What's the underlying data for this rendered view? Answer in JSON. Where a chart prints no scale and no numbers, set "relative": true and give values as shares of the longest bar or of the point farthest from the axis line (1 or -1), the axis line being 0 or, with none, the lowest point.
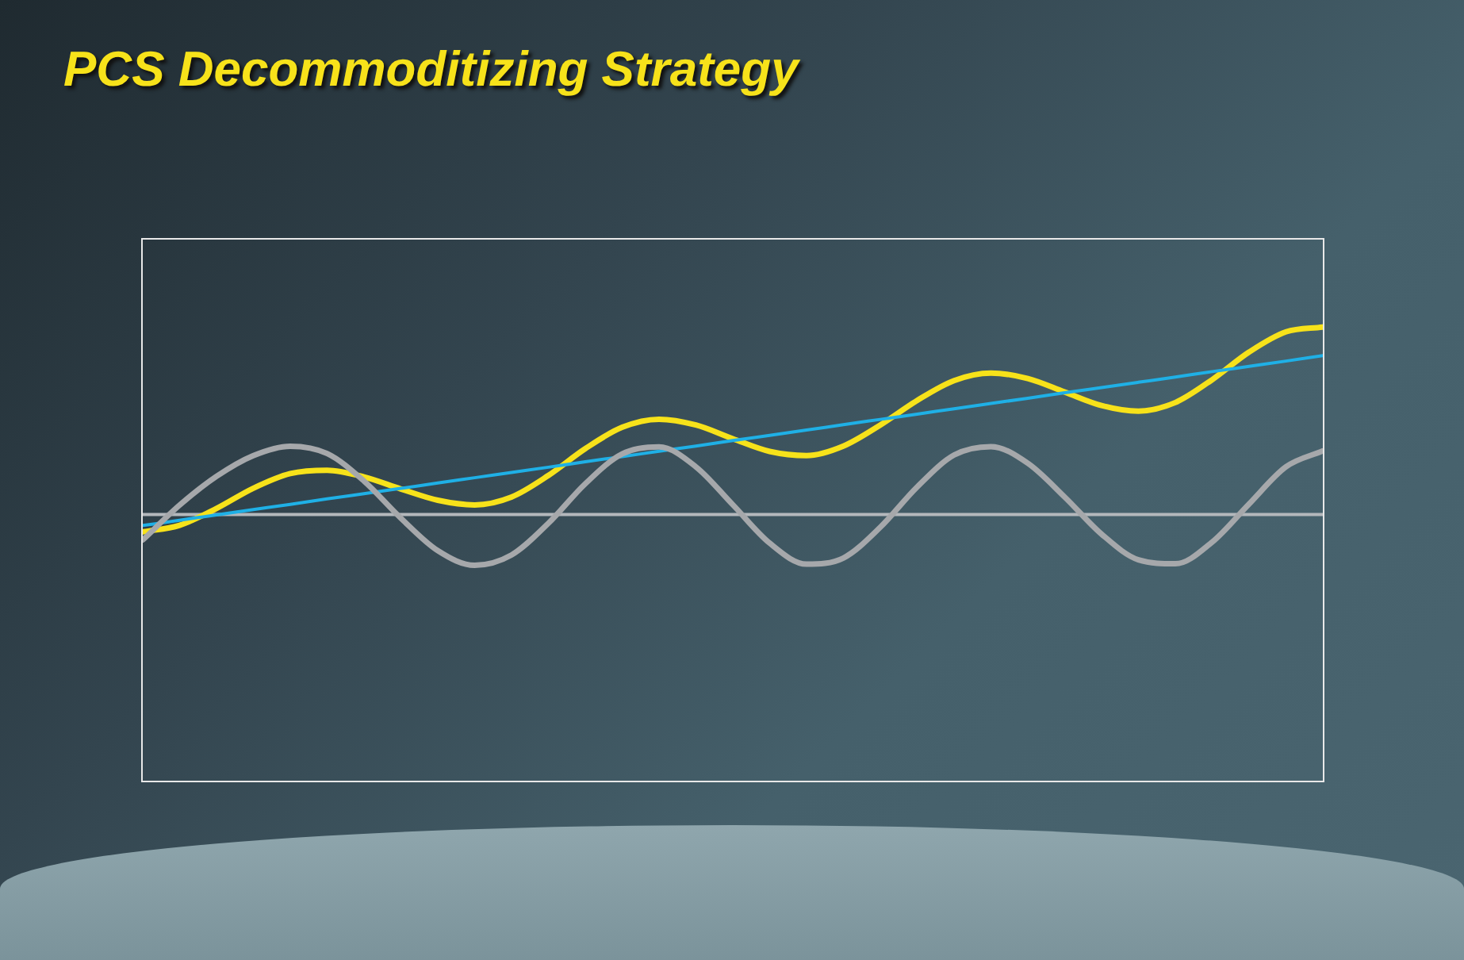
{
  "chart_data": {
    "type": "line",
    "title": "PCS Decommoditizing Strategy",
    "relative": true,
    "legend": false,
    "marker": "none",
    "line_style": "solid",
    "categories": [
      null,
      null,
      null,
      null,
      null,
      null,
      null,
      null,
      null,
      null,
      null,
      null,
      null,
      null,
      null,
      null,
      null,
      null,
      null,
      null,
      null,
      null,
      null,
      null,
      null,
      null,
      null,
      null,
      null,
      null,
      null,
      null,
      null
    ],
    "ref_lines": [
      {
        "axis": "y",
        "value": 0,
        "color": "#b4b8bc"
      }
    ],
    "series": [
      {
        "color": "#a6a8ab",
        "values": [
          -0.136,
          0.05,
          0.203,
          0.314,
          0.364,
          0.325,
          0.178,
          -0.02,
          -0.193,
          -0.271,
          -0.216,
          -0.047,
          0.164,
          0.323,
          0.36,
          0.254,
          0.052,
          -0.153,
          -0.265,
          -0.232,
          -0.068,
          0.147,
          0.317,
          0.362,
          0.273,
          0.093,
          -0.105,
          -0.242,
          -0.263,
          -0.147,
          0.056,
          0.254,
          0.339
        ]
      },
      {
        "color": "#1fb0e6",
        "values": [
          -0.059,
          -0.031,
          -0.002,
          0.026,
          0.054,
          0.083,
          0.111,
          0.139,
          0.168,
          0.196,
          0.224,
          0.252,
          0.281,
          0.309,
          0.337,
          0.365,
          0.394,
          0.422,
          0.45,
          0.479,
          0.507,
          0.535,
          0.564,
          0.592,
          0.62,
          0.649,
          0.677,
          0.705,
          0.733,
          0.762,
          0.79,
          0.818,
          0.847
        ]
      },
      {
        "color": "#f7e21a",
        "values": [
          -0.093,
          -0.058,
          0.032,
          0.14,
          0.218,
          0.236,
          0.2,
          0.136,
          0.076,
          0.051,
          0.093,
          0.208,
          0.351,
          0.465,
          0.508,
          0.477,
          0.404,
          0.336,
          0.314,
          0.365,
          0.477,
          0.608,
          0.714,
          0.754,
          0.725,
          0.653,
          0.581,
          0.551,
          0.597,
          0.719,
          0.866,
          0.974,
          1.0
        ]
      }
    ]
  }
}
